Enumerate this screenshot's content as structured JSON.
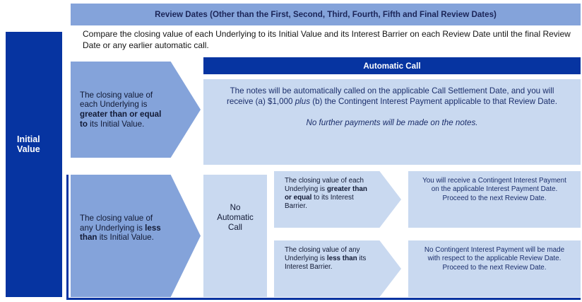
{
  "colors": {
    "dark_blue": "#0634a1",
    "medium_blue": "#84a3da",
    "pale_blue": "#c9d9f0",
    "banner_text": "#1b2558",
    "body_text_navy": "#1b2e6b",
    "condition_text": "#121a35",
    "white": "#ffffff"
  },
  "header": {
    "title": "Review Dates (Other than the First, Second, Third, Fourth, Fifth and Final Review Dates)"
  },
  "intro": {
    "text": "Compare the closing value of each Underlying to its Initial Value and its Interest Barrier on each Review Date until the final Review Date or any earlier automatic call."
  },
  "sidebar": {
    "label": "Initial Value"
  },
  "flow_top": {
    "condition": {
      "pre": "The closing value of each Underlying is ",
      "bold": "greater than or equal to",
      "post": " its Initial Value."
    },
    "call": {
      "title": "Automatic Call",
      "body_pre": "The notes will be automatically called on the applicable Call Settlement Date, and you will receive (a) $1,000 ",
      "body_italic": "plus",
      "body_post": " (b) the Contingent Interest Payment applicable to that Review Date.",
      "note": "No further payments will be made on the notes."
    }
  },
  "flow_bottom": {
    "condition": {
      "pre": "The closing value of any Underlying is ",
      "bold": "less than",
      "post": " its Initial Value."
    },
    "no_call": {
      "label": "No Automatic Call"
    },
    "branch_above": {
      "condition": {
        "pre": "The closing value of each Underlying is ",
        "bold": "greater than or equal",
        "post": " to its Interest Barrier."
      },
      "outcome": {
        "line1": "You will receive a Contingent Interest Payment on the applicable Interest Payment Date.",
        "line2": "Proceed to the next Review Date."
      }
    },
    "branch_below": {
      "condition": {
        "pre": "The closing value of any Underlying is ",
        "bold": "less than",
        "post": " its Interest Barrier."
      },
      "outcome": {
        "line1": "No Contingent Interest Payment will be made with respect to the applicable Review Date.",
        "line2": "Proceed to the next Review Date."
      }
    }
  }
}
